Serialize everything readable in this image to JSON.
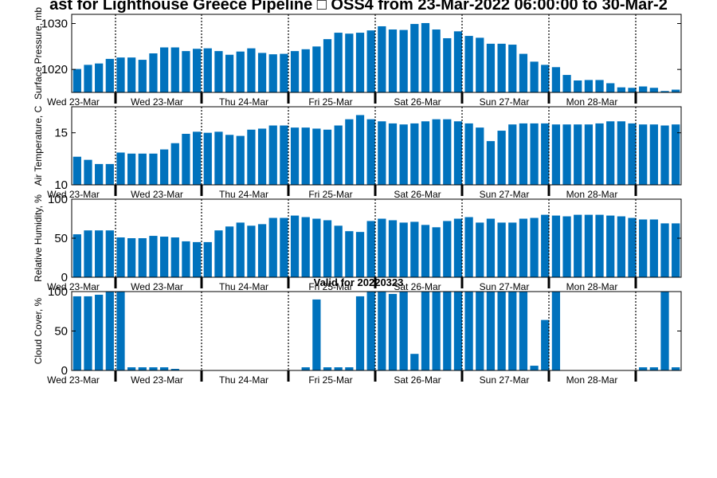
{
  "chart_data": {
    "type": "bar",
    "title": "ast for Lighthouse Greece Pipeline □ OSS4 from 23-Mar-2022 06:00:00 to 30-Mar-2",
    "subtitle": "Valid for 20220323",
    "day_labels": [
      "Wed 23-Mar",
      "Wed 23-Mar",
      "Thu 24-Mar",
      "Fri 25-Mar",
      "Sat 26-Mar",
      "Sun 27-Mar",
      "Mon 28-Mar"
    ],
    "bar_color": "#0072BD",
    "panels": [
      {
        "ylabel": "Surface Pressure, mb",
        "ylim": [
          1015,
          1032
        ],
        "yticks": [
          "1020",
          "1030"
        ],
        "values": [
          1020.1,
          1021.0,
          1021.3,
          1022.3,
          1022.6,
          1022.6,
          1022.1,
          1023.5,
          1024.8,
          1024.8,
          1024.0,
          1024.5,
          1024.6,
          1024.0,
          1023.2,
          1023.9,
          1024.6,
          1023.6,
          1023.3,
          1023.4,
          1024.0,
          1024.4,
          1025.0,
          1026.6,
          1028.0,
          1027.8,
          1028.0,
          1028.5,
          1029.4,
          1028.7,
          1028.6,
          1029.9,
          1030.1,
          1028.7,
          1026.8,
          1028.3,
          1027.3,
          1026.9,
          1025.6,
          1025.6,
          1025.4,
          1023.4,
          1021.7,
          1021.0,
          1020.5,
          1018.8,
          1017.6,
          1017.7,
          1017.7,
          1017.0,
          1016.1,
          1016.0,
          1016.3,
          1016.0,
          1015.3,
          1015.6
        ]
      },
      {
        "ylabel": "Air Temperature, C",
        "ylim": [
          10,
          17.5
        ],
        "yticks": [
          "10",
          "15"
        ],
        "values": [
          12.7,
          12.4,
          12.0,
          12.0,
          13.1,
          13.0,
          13.0,
          13.0,
          13.4,
          14.0,
          14.9,
          15.1,
          15.0,
          15.1,
          14.8,
          14.7,
          15.3,
          15.4,
          15.7,
          15.7,
          15.5,
          15.5,
          15.4,
          15.3,
          15.7,
          16.3,
          16.7,
          16.3,
          16.1,
          15.9,
          15.8,
          15.9,
          16.1,
          16.3,
          16.3,
          16.1,
          15.9,
          15.5,
          14.2,
          15.2,
          15.8,
          15.9,
          15.9,
          15.9,
          15.8,
          15.8,
          15.8,
          15.8,
          15.9,
          16.1,
          16.1,
          15.9,
          15.8,
          15.8,
          15.7,
          15.8
        ]
      },
      {
        "ylabel": "Relative Humidity, %",
        "ylim": [
          0,
          100
        ],
        "yticks": [
          "0",
          "50",
          "100"
        ],
        "values": [
          55,
          60,
          60,
          60,
          51,
          50,
          50,
          53,
          52,
          51,
          46,
          45,
          45,
          60,
          65,
          70,
          66,
          68,
          76,
          76,
          79,
          77,
          75,
          73,
          66,
          59,
          58,
          72,
          75,
          73,
          70,
          71,
          67,
          64,
          72,
          75,
          77,
          70,
          75,
          70,
          70,
          75,
          76,
          80,
          79,
          78,
          80,
          80,
          80,
          79,
          78,
          76,
          74,
          74,
          69,
          69
        ]
      },
      {
        "ylabel": "Cloud Cover, %",
        "ylim": [
          0,
          100
        ],
        "yticks": [
          "0",
          "50",
          "100"
        ],
        "values": [
          94,
          94,
          96,
          100,
          100,
          4,
          4,
          4,
          4,
          2,
          0,
          0,
          0,
          0,
          0,
          0,
          0,
          0,
          0,
          0,
          0,
          4,
          90,
          4,
          4,
          4,
          94,
          100,
          100,
          97,
          100,
          21,
          100,
          100,
          100,
          100,
          100,
          100,
          100,
          100,
          100,
          100,
          6,
          64,
          100,
          0,
          0,
          0,
          0,
          0,
          0,
          0,
          4,
          4,
          100,
          4
        ]
      }
    ]
  }
}
